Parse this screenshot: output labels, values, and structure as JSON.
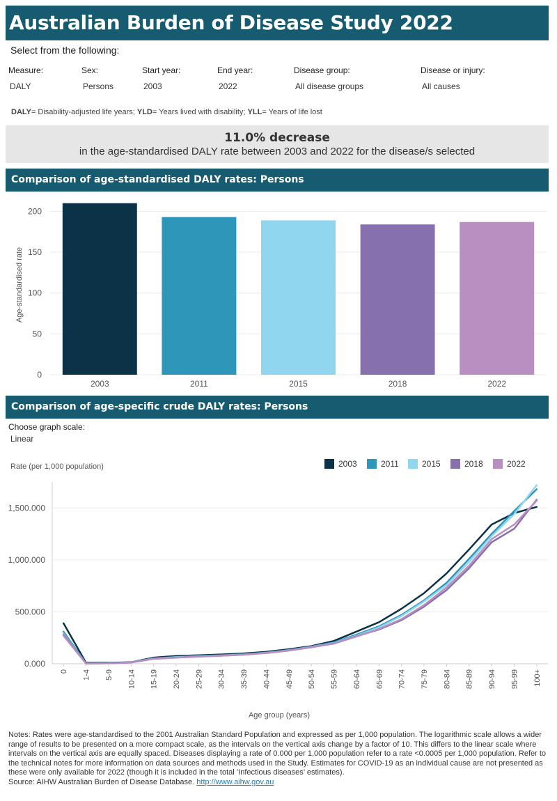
{
  "title": "Australian Burden of Disease Study 2022",
  "select_header": "Select from the following:",
  "filters": [
    {
      "label": "Measure:",
      "value": "DALY"
    },
    {
      "label": "Sex:",
      "value": "Persons"
    },
    {
      "label": "Start year:",
      "value": "2003"
    },
    {
      "label": "End year:",
      "value": "2022"
    },
    {
      "label": "Disease group:",
      "value": "All disease groups"
    },
    {
      "label": "Disease or injury:",
      "value": "All causes"
    }
  ],
  "abbreviations": {
    "daly_key": "DALY",
    "daly_text": "= Disability-adjusted life years; ",
    "yld_key": "YLD",
    "yld_text": "= Years lived with disability; ",
    "yll_key": "YLL",
    "yll_text": "= Years of life lost"
  },
  "banner": {
    "headline": "11.0% decrease",
    "subtext": "in the age-standardised DALY rate between 2003 and 2022 for the disease/s selected"
  },
  "section1_title": "Comparison of age-standardised DALY rates: Persons",
  "section2_title": "Comparison of age-specific crude DALY rates: Persons",
  "graph_scale": {
    "label": "Choose graph scale:",
    "value": "Linear"
  },
  "colors": {
    "2003": "#0b3247",
    "2011": "#2e96b8",
    "2015": "#8fd6ee",
    "2018": "#8670ae",
    "2022": "#b98fc2"
  },
  "chart_data": [
    {
      "type": "bar",
      "ylabel": "Age-standardised rate",
      "ylim": [
        0,
        220
      ],
      "yticks": [
        0,
        50,
        100,
        150,
        200
      ],
      "categories": [
        "2003",
        "2011",
        "2015",
        "2018",
        "2022"
      ],
      "values": [
        210,
        193,
        189,
        184,
        187
      ]
    },
    {
      "type": "line",
      "ylabel": "Rate (per 1,000 population)",
      "xlabel": "Age group (years)",
      "ylim": [
        0,
        1750
      ],
      "yticks": [
        0,
        500,
        1000,
        1500
      ],
      "ytick_labels": [
        "0.000",
        "500.000",
        "1,000.000",
        "1,500.000"
      ],
      "legend_position": "top-right",
      "x": [
        "0",
        "1-4",
        "5-9",
        "10-14",
        "15-19",
        "20-24",
        "25-29",
        "30-34",
        "35-39",
        "40-44",
        "45-49",
        "50-54",
        "55-59",
        "60-64",
        "65-69",
        "70-74",
        "75-79",
        "80-84",
        "85-89",
        "90-94",
        "95-99",
        "100+"
      ],
      "series": [
        {
          "name": "2003",
          "values": [
            390,
            10,
            10,
            15,
            60,
            75,
            82,
            90,
            100,
            115,
            140,
            170,
            220,
            310,
            400,
            530,
            680,
            870,
            1100,
            1340,
            1450,
            1510
          ]
        },
        {
          "name": "2011",
          "values": [
            310,
            4,
            6,
            14,
            52,
            65,
            75,
            82,
            92,
            108,
            132,
            165,
            205,
            280,
            360,
            470,
            610,
            780,
            1010,
            1250,
            1470,
            1680
          ]
        },
        {
          "name": "2015",
          "values": [
            290,
            3,
            5,
            13,
            50,
            63,
            73,
            80,
            90,
            106,
            130,
            163,
            200,
            270,
            350,
            460,
            600,
            760,
            980,
            1230,
            1440,
            1720
          ]
        },
        {
          "name": "2018",
          "values": [
            280,
            3,
            5,
            12,
            48,
            60,
            70,
            78,
            88,
            104,
            128,
            160,
            195,
            265,
            330,
            420,
            550,
            710,
            920,
            1170,
            1300,
            1580
          ]
        },
        {
          "name": "2022",
          "values": [
            270,
            3,
            5,
            12,
            47,
            59,
            69,
            77,
            87,
            103,
            127,
            158,
            193,
            262,
            335,
            430,
            565,
            735,
            945,
            1200,
            1340,
            1570
          ]
        }
      ]
    }
  ],
  "notes": "Notes: Rates were age-standardised to the 2001 Australian Standard Population and expressed as per 1,000 population. The logarithmic scale allows a wider range of results to be presented on a more compact scale, as the intervals on the vertical axis change by a factor of 10. This differs to the linear scale where intervals on the vertical axis are equally spaced. Diseases displaying a rate of 0.000 per 1,000 population refer to a rate <0.0005 per 1,000 population. Refer to the technical notes for more information on data sources and methods used in the Study. Estimates for COVID-19 as an individual cause are not presented as these were only available for 2022 (though it is included in the total ’Infectious diseases’ estimates).",
  "source_prefix": "Source: AIHW Australian Burden of Disease Database. ",
  "source_link": "http://www.aihw.gov.au"
}
